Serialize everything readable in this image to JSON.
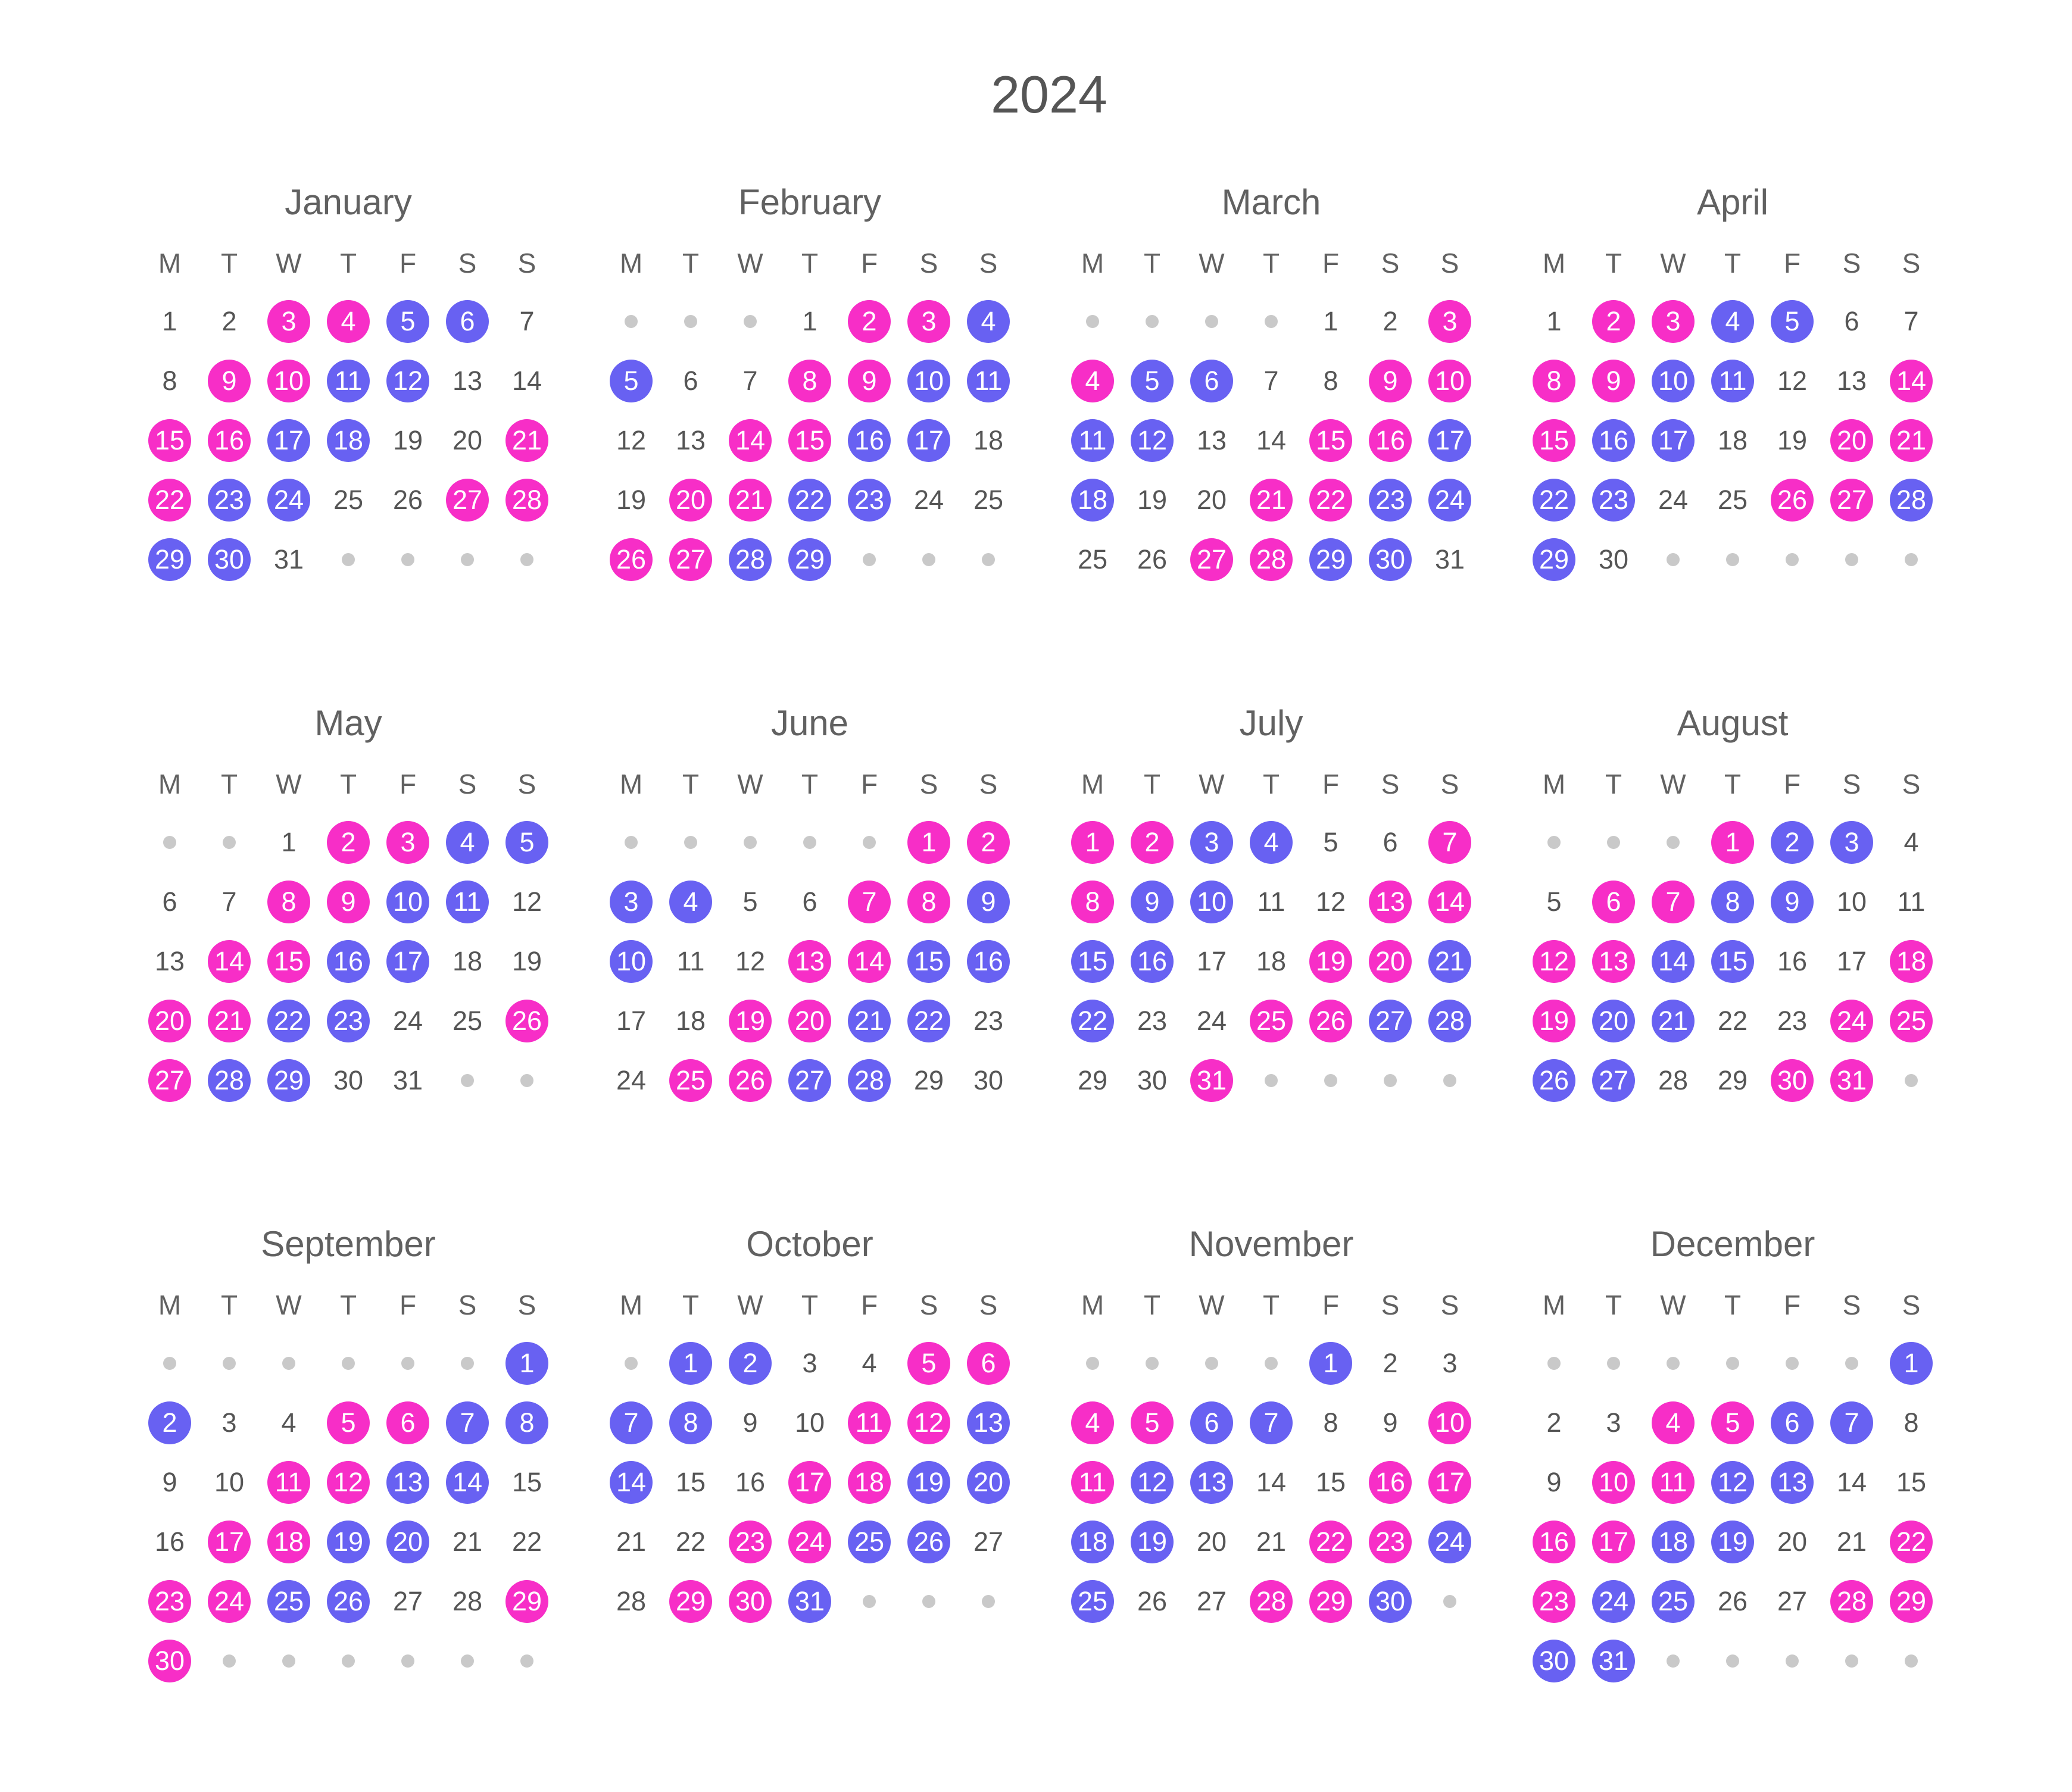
{
  "title": "2024",
  "colors": {
    "pink": "#f72ec7",
    "purple": "#6861f2",
    "text": "#555555",
    "dot": "#c9c9c9"
  },
  "weekdays": [
    "M",
    "T",
    "W",
    "T",
    "F",
    "S",
    "S"
  ],
  "months": [
    {
      "name": "January",
      "offset": 0,
      "days": 31,
      "trailing": 4,
      "pink": [
        3,
        4,
        9,
        10,
        15,
        16,
        21,
        22,
        27,
        28
      ],
      "purple": [
        5,
        6,
        11,
        12,
        17,
        18,
        23,
        24,
        29,
        30
      ]
    },
    {
      "name": "February",
      "offset": 3,
      "days": 29,
      "trailing": 3,
      "pink": [
        2,
        3,
        8,
        9,
        14,
        15,
        20,
        21,
        26,
        27
      ],
      "purple": [
        4,
        5,
        10,
        11,
        16,
        17,
        22,
        23,
        28,
        29
      ]
    },
    {
      "name": "March",
      "offset": 4,
      "days": 31,
      "trailing": 0,
      "pink": [
        3,
        4,
        9,
        10,
        15,
        16,
        21,
        22,
        27,
        28
      ],
      "purple": [
        5,
        6,
        11,
        12,
        17,
        18,
        23,
        24,
        29,
        30
      ]
    },
    {
      "name": "April",
      "offset": 0,
      "days": 30,
      "trailing": 5,
      "pink": [
        2,
        3,
        8,
        9,
        14,
        15,
        20,
        21,
        26,
        27
      ],
      "purple": [
        4,
        5,
        10,
        11,
        16,
        17,
        22,
        23,
        28,
        29
      ]
    },
    {
      "name": "May",
      "offset": 2,
      "days": 31,
      "trailing": 2,
      "pink": [
        2,
        3,
        8,
        9,
        14,
        15,
        20,
        21,
        26,
        27
      ],
      "purple": [
        4,
        5,
        10,
        11,
        16,
        17,
        22,
        23,
        28,
        29
      ]
    },
    {
      "name": "June",
      "offset": 5,
      "days": 30,
      "trailing": 0,
      "pink": [
        1,
        2,
        7,
        8,
        13,
        14,
        19,
        20,
        25,
        26
      ],
      "purple": [
        3,
        4,
        9,
        10,
        15,
        16,
        21,
        22,
        27,
        28
      ]
    },
    {
      "name": "July",
      "offset": 0,
      "days": 31,
      "trailing": 4,
      "pink": [
        1,
        2,
        7,
        8,
        13,
        14,
        19,
        20,
        25,
        26,
        31
      ],
      "purple": [
        3,
        4,
        9,
        10,
        15,
        16,
        21,
        22,
        27,
        28
      ]
    },
    {
      "name": "August",
      "offset": 3,
      "days": 31,
      "trailing": 1,
      "pink": [
        1,
        6,
        7,
        12,
        13,
        18,
        19,
        24,
        25,
        30,
        31
      ],
      "purple": [
        2,
        3,
        8,
        9,
        14,
        15,
        20,
        21,
        26,
        27
      ]
    },
    {
      "name": "September",
      "offset": 6,
      "days": 30,
      "trailing": 6,
      "pink": [
        5,
        6,
        11,
        12,
        17,
        18,
        23,
        24,
        29,
        30
      ],
      "purple": [
        1,
        2,
        7,
        8,
        13,
        14,
        19,
        20,
        25,
        26
      ]
    },
    {
      "name": "October",
      "offset": 1,
      "days": 31,
      "trailing": 3,
      "pink": [
        5,
        6,
        11,
        12,
        17,
        18,
        23,
        24,
        29,
        30
      ],
      "purple": [
        1,
        2,
        7,
        8,
        13,
        14,
        19,
        20,
        25,
        26,
        31
      ]
    },
    {
      "name": "November",
      "offset": 4,
      "days": 30,
      "trailing": 1,
      "pink": [
        4,
        5,
        10,
        11,
        16,
        17,
        22,
        23,
        28,
        29
      ],
      "purple": [
        1,
        6,
        7,
        12,
        13,
        18,
        19,
        24,
        25,
        30
      ]
    },
    {
      "name": "December",
      "offset": 6,
      "days": 31,
      "trailing": 5,
      "pink": [
        4,
        5,
        10,
        11,
        16,
        17,
        22,
        23,
        28,
        29
      ],
      "purple": [
        1,
        6,
        7,
        12,
        13,
        18,
        19,
        24,
        25,
        30,
        31
      ]
    }
  ]
}
